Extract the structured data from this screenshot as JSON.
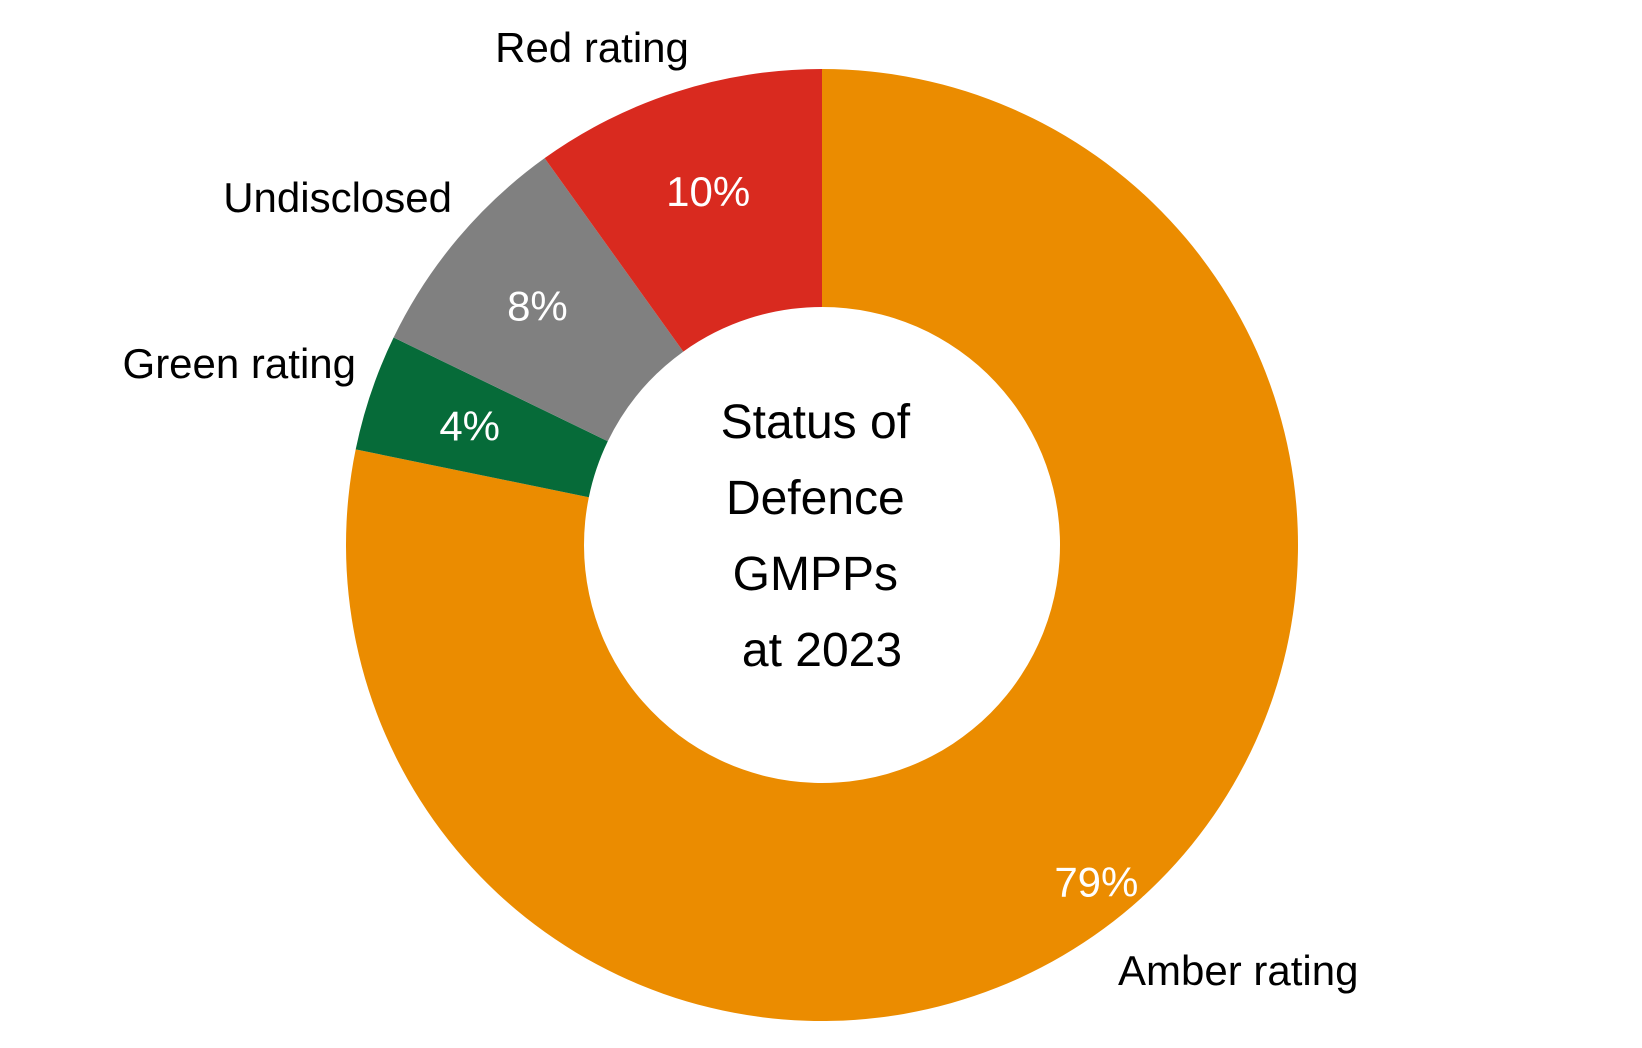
{
  "chart_data": {
    "type": "pie",
    "variant": "donut",
    "title": "",
    "center_label": [
      "Status of",
      "Defence",
      "GMPPs",
      "at 2023"
    ],
    "start_angle_deg": 0,
    "direction": "clockwise",
    "slices": [
      {
        "label": "Amber rating",
        "value": 79,
        "value_label": "79%",
        "color": "#EB8C00"
      },
      {
        "label": "Green rating",
        "value": 4,
        "value_label": "4%",
        "color": "#066B39"
      },
      {
        "label": "Undisclosed",
        "value": 8,
        "value_label": "8%",
        "color": "#808080"
      },
      {
        "label": "Red rating",
        "value": 10,
        "value_label": "10%",
        "color": "#D92A1F"
      }
    ]
  }
}
